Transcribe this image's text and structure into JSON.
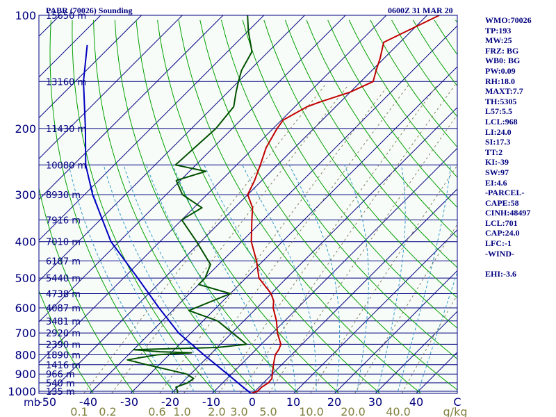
{
  "header": {
    "station_title": "PABR (70026) Sounding",
    "valid_time": "0600Z 31 MAR 20"
  },
  "stats": [
    "WMO:70026",
    "TP:193",
    "MW:25",
    "FRZ: BG",
    "WB0: BG",
    "PW:0.09",
    "RH:18.0",
    "MAXT:7.7",
    "TH:5305",
    "L57:5.5",
    "LCL:968",
    "LI:24.0",
    "SI:17.3",
    "TT:2",
    "KI:-39",
    "SW:97",
    "EI:4.6",
    "-PARCEL-",
    "CAPE:58",
    "CINH:48497",
    "LCL:701",
    "CAP:24.0",
    "LFC:-1",
    "-WIND-",
    "",
    "EHI:-3.6"
  ],
  "colors": {
    "frame": "#000080",
    "isobar": "#000080",
    "isotherm": "#000080",
    "dry_adiabat": "#00a000",
    "moist_adiabat": "#3399cc",
    "mixing_ratio": "#808060",
    "temperature": "#c00000",
    "dewpoint": "#005000",
    "parcel": "#0000c0",
    "pressure_label": "#000080",
    "temp_label": "#000080",
    "mixing_label": "#808040"
  },
  "chart_data": {
    "type": "line",
    "chart_kind": "skew-T log-P thermodynamic diagram",
    "ylabel": "mb",
    "xlabel": "",
    "pressure_ticks": [
      100,
      200,
      300,
      400,
      500,
      600,
      700,
      800,
      900,
      1000
    ],
    "temperature_ticks": [
      -50,
      -40,
      -30,
      -20,
      -10,
      0,
      10,
      20,
      30,
      40
    ],
    "temperature_tick_labels": [
      "-50",
      "-40",
      "-30",
      "-20",
      "-10",
      "0",
      "10",
      "20",
      "30",
      "40",
      "C"
    ],
    "mixing_ratio_labels": [
      "0.1",
      "0.2",
      "0.6",
      "1.0",
      "2.0",
      "3.0",
      "5.0",
      "10.0",
      "20.0",
      "40.0",
      "g/kg"
    ],
    "height_labels": [
      {
        "p": 100,
        "text": "15650 m"
      },
      {
        "p": 150,
        "text": "13160 m"
      },
      {
        "p": 200,
        "text": "11430 m"
      },
      {
        "p": 250,
        "text": "10080 m"
      },
      {
        "p": 300,
        "text": "8930 m"
      },
      {
        "p": 350,
        "text": "7916 m"
      },
      {
        "p": 400,
        "text": "7010 m"
      },
      {
        "p": 450,
        "text": "6187 m"
      },
      {
        "p": 500,
        "text": "5440 m"
      },
      {
        "p": 550,
        "text": "4738 m"
      },
      {
        "p": 600,
        "text": "4087 m"
      },
      {
        "p": 650,
        "text": "3481 m"
      },
      {
        "p": 700,
        "text": "2920 m"
      },
      {
        "p": 750,
        "text": "2390 m"
      },
      {
        "p": 800,
        "text": "1890 m"
      },
      {
        "p": 850,
        "text": "1416 m"
      },
      {
        "p": 900,
        "text": "966 m"
      },
      {
        "p": 950,
        "text": "540 m"
      },
      {
        "p": 1000,
        "text": "135 m"
      }
    ],
    "series": [
      {
        "role": "temperature",
        "points": [
          [
            1013,
            -0.5
          ],
          [
            1000,
            0.6
          ],
          [
            975,
            0.6
          ],
          [
            950,
            1.2
          ],
          [
            925,
            1.0
          ],
          [
            900,
            0.0
          ],
          [
            850,
            -2.0
          ],
          [
            800,
            -4.0
          ],
          [
            775,
            -4.4
          ],
          [
            750,
            -5.2
          ],
          [
            700,
            -8.8
          ],
          [
            650,
            -12.0
          ],
          [
            600,
            -16.0
          ],
          [
            575,
            -17.6
          ],
          [
            550,
            -20.0
          ],
          [
            500,
            -26.8
          ],
          [
            450,
            -31.6
          ],
          [
            400,
            -37.6
          ],
          [
            350,
            -42.8
          ],
          [
            325,
            -45.6
          ],
          [
            300,
            -50.0
          ],
          [
            275,
            -51.8
          ],
          [
            250,
            -54.2
          ],
          [
            225,
            -57.0
          ],
          [
            200,
            -59.0
          ],
          [
            190,
            -59.6
          ],
          [
            175,
            -57.0
          ],
          [
            170,
            -55.0
          ],
          [
            160,
            -50.0
          ],
          [
            150,
            -47.0
          ],
          [
            140,
            -49.0
          ],
          [
            130,
            -51.0
          ],
          [
            118,
            -54.0
          ],
          [
            100,
            -47.0
          ]
        ]
      },
      {
        "role": "dewpoint",
        "points": [
          [
            1013,
            -18.5
          ],
          [
            1000,
            -19.0
          ],
          [
            975,
            -20.4
          ],
          [
            950,
            -18.6
          ],
          [
            925,
            -18.2
          ],
          [
            900,
            -21.0
          ],
          [
            850,
            -33.0
          ],
          [
            825,
            -39.0
          ],
          [
            800,
            -33.0
          ],
          [
            790,
            -25.0
          ],
          [
            785,
            -33.0
          ],
          [
            775,
            -40.0
          ],
          [
            765,
            -20.0
          ],
          [
            750,
            -13.6
          ],
          [
            700,
            -19.8
          ],
          [
            650,
            -26.4
          ],
          [
            610,
            -36.0
          ],
          [
            550,
            -30.0
          ],
          [
            520,
            -40.0
          ],
          [
            500,
            -40.0
          ],
          [
            460,
            -42.0
          ],
          [
            400,
            -51.0
          ],
          [
            350,
            -60.0
          ],
          [
            325,
            -58.0
          ],
          [
            300,
            -66.0
          ],
          [
            275,
            -71.0
          ],
          [
            260,
            -66.0
          ],
          [
            250,
            -75.0
          ],
          [
            200,
            -74.0
          ],
          [
            175,
            -75.0
          ],
          [
            160,
            -78.0
          ],
          [
            150,
            -80.0
          ],
          [
            140,
            -82.0
          ],
          [
            125,
            -84.0
          ],
          [
            110,
            -90.0
          ],
          [
            100,
            -94.0
          ]
        ]
      },
      {
        "role": "parcel",
        "points": [
          [
            1013,
            -0.5
          ],
          [
            968,
            -4.6
          ],
          [
            900,
            -11.0
          ],
          [
            800,
            -21.5
          ],
          [
            700,
            -33.0
          ],
          [
            600,
            -44.0
          ],
          [
            500,
            -56.5
          ],
          [
            400,
            -72.0
          ],
          [
            300,
            -88.0
          ],
          [
            250,
            -97.0
          ],
          [
            200,
            -106.0
          ],
          [
            150,
            -118.0
          ],
          [
            120,
            -126.0
          ]
        ]
      }
    ]
  }
}
